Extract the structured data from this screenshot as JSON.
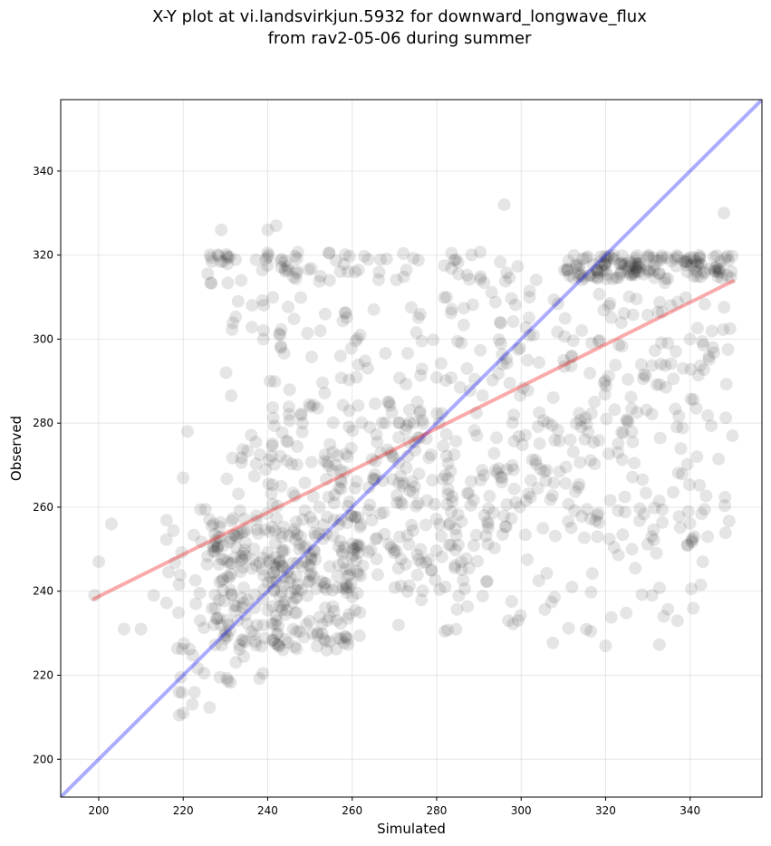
{
  "chart_data": {
    "type": "scatter",
    "title_lines": [
      "X-Y plot at vi.landsvirkjun.5932 for downward_longwave_flux",
      "from rav2-05-06 during summer"
    ],
    "xlabel": "Simulated",
    "ylabel": "Observed",
    "xlim": [
      191,
      357
    ],
    "ylim": [
      191,
      357
    ],
    "xticks": [
      200,
      220,
      240,
      260,
      280,
      300,
      320,
      340
    ],
    "yticks": [
      200,
      220,
      240,
      260,
      280,
      300,
      320,
      340
    ],
    "grid": true,
    "point_color": "#000000",
    "point_alpha": 0.1,
    "lines": [
      {
        "role": "one-to-one",
        "color": "#0000ff",
        "alpha": 0.33,
        "points": [
          [
            191,
            191
          ],
          [
            357,
            357
          ]
        ]
      },
      {
        "role": "regression-fit",
        "color": "#ee2222",
        "alpha": 0.38,
        "points": [
          [
            198.5,
            238
          ],
          [
            350.5,
            314
          ]
        ]
      }
    ],
    "clusters": [
      {
        "x_range": [
          225,
          262
        ],
        "y_range": [
          313,
          321
        ],
        "count": 55
      },
      {
        "x_range": [
          262,
          300
        ],
        "y_range": [
          313,
          321
        ],
        "count": 25
      },
      {
        "x_range": [
          310,
          350
        ],
        "y_range": [
          314,
          320
        ],
        "count": 150
      },
      {
        "x_range": [
          227,
          262
        ],
        "y_range": [
          226,
          258
        ],
        "count": 260
      },
      {
        "x_range": [
          240,
          285
        ],
        "y_range": [
          240,
          285
        ],
        "count": 170
      },
      {
        "x_range": [
          262,
          300
        ],
        "y_range": [
          245,
          315
        ],
        "count": 140
      },
      {
        "x_range": [
          300,
          350
        ],
        "y_range": [
          250,
          315
        ],
        "count": 170
      },
      {
        "x_range": [
          300,
          345
        ],
        "y_range": [
          225,
          300
        ],
        "count": 90
      },
      {
        "x_range": [
          215,
          240
        ],
        "y_range": [
          210,
          260
        ],
        "count": 55
      },
      {
        "x_range": [
          230,
          262
        ],
        "y_range": [
          255,
          310
        ],
        "count": 90
      },
      {
        "x_range": [
          270,
          300
        ],
        "y_range": [
          230,
          270
        ],
        "count": 50
      }
    ],
    "points": [
      [
        199,
        239
      ],
      [
        200,
        247
      ],
      [
        203,
        256
      ],
      [
        206,
        231
      ],
      [
        210,
        231
      ],
      [
        213,
        239
      ],
      [
        220,
        211
      ],
      [
        219,
        216
      ],
      [
        220,
        267
      ],
      [
        221,
        278
      ],
      [
        296,
        332
      ],
      [
        295,
        304
      ],
      [
        337,
        233
      ],
      [
        348,
        330
      ],
      [
        350,
        277
      ],
      [
        242,
        327
      ],
      [
        229,
        326
      ],
      [
        233,
        309
      ],
      [
        223,
        237
      ],
      [
        224,
        233
      ],
      [
        239,
        300
      ],
      [
        240,
        326
      ],
      [
        254,
        226
      ],
      [
        297,
        233
      ],
      [
        320,
        227
      ],
      [
        331,
        239
      ],
      [
        343,
        247
      ],
      [
        341,
        253
      ],
      [
        312,
        241
      ]
    ]
  }
}
